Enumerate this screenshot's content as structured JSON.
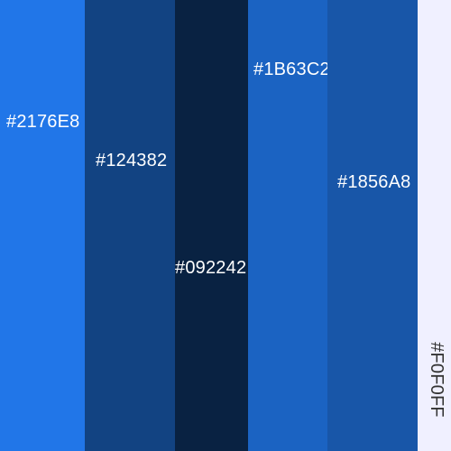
{
  "palette": {
    "colors": [
      {
        "hex": "#2176E8",
        "label": "#2176E8"
      },
      {
        "hex": "#124382",
        "label": "#124382"
      },
      {
        "hex": "#092242",
        "label": "#092242"
      },
      {
        "hex": "#1B63C2",
        "label": "#1B63C2"
      },
      {
        "hex": "#1856A8",
        "label": "#1856A8"
      },
      {
        "hex": "#F0F0FF",
        "label": "#F0F0FF"
      }
    ]
  }
}
